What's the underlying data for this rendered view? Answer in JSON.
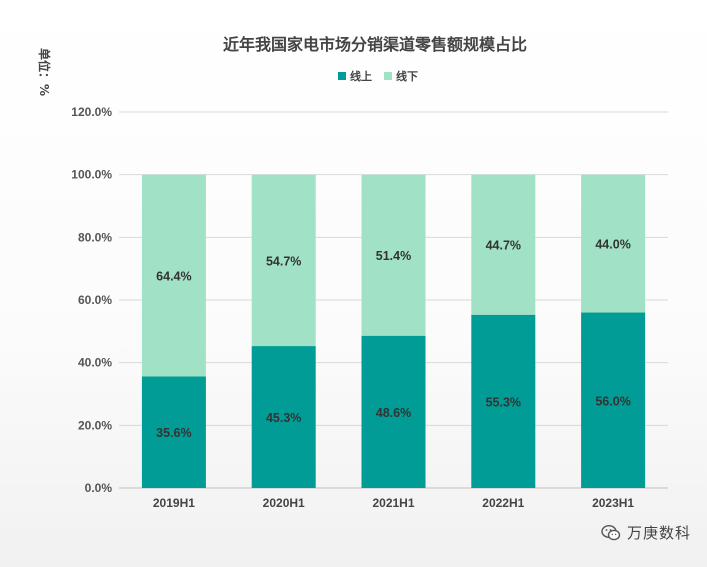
{
  "chart_data": {
    "type": "bar",
    "stacked": true,
    "title": "近年我国家电市场分销渠道零售额规模占比",
    "unit_label": "单位：%",
    "categories": [
      "2019H1",
      "2020H1",
      "2021H1",
      "2022H1",
      "2023H1"
    ],
    "series": [
      {
        "name": "线上",
        "color": "#009c95",
        "values": [
          35.6,
          45.3,
          48.6,
          55.3,
          56.0
        ]
      },
      {
        "name": "线下",
        "color": "#a1e2c7",
        "values": [
          64.4,
          54.7,
          51.4,
          44.7,
          44.0
        ]
      }
    ],
    "data_labels": [
      [
        "35.6%",
        "45.3%",
        "48.6%",
        "55.3%",
        "56.0%"
      ],
      [
        "64.4%",
        "54.7%",
        "51.4%",
        "44.7%",
        "44.0%"
      ]
    ],
    "yticks": [
      "0.0%",
      "20.0%",
      "40.0%",
      "60.0%",
      "80.0%",
      "100.0%",
      "120.0%"
    ],
    "ylim": [
      0,
      120
    ],
    "grid": true,
    "legend_position": "top-center"
  },
  "watermark": {
    "text": "万庚数科",
    "icon": "wechat-icon"
  }
}
